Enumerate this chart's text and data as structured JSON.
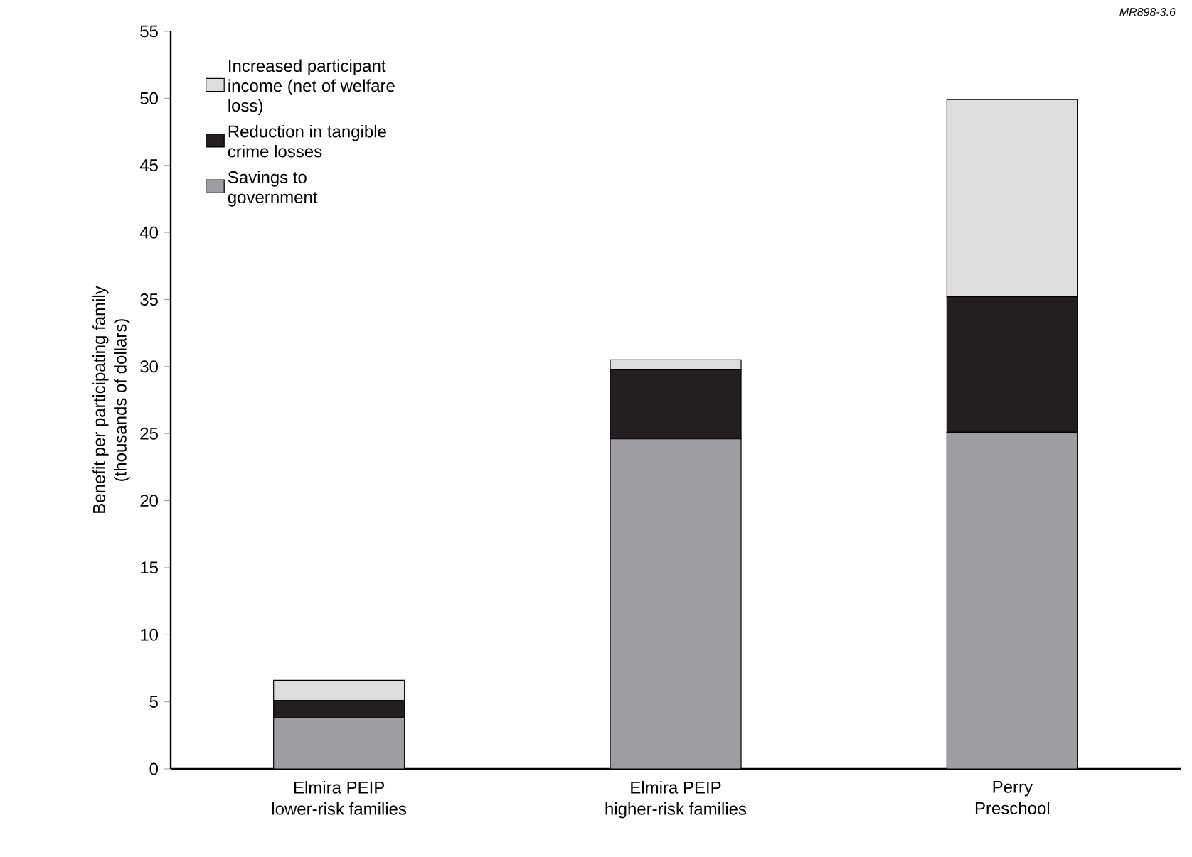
{
  "chart_data": {
    "type": "bar",
    "stacked": true,
    "ylabel": "Benefit per participating family\n(thousands of dollars)",
    "categories": [
      "Elmira PEIP\nlower-risk families",
      "Elmira PEIP\nhigher-risk families",
      "Perry\nPreschool"
    ],
    "series": [
      {
        "name": "Savings to\ngovernment",
        "color": "#9d9ea2",
        "values": [
          3.8,
          24.6,
          25.1
        ]
      },
      {
        "name": "Reduction in tangible\ncrime losses",
        "color": "#231f20",
        "values": [
          1.3,
          5.2,
          10.1
        ]
      },
      {
        "name": "Increased participant\nincome (net of welfare\nloss)",
        "color": "#dcdddf",
        "values": [
          1.5,
          0.7,
          14.7
        ]
      }
    ],
    "ylim": [
      0,
      55
    ],
    "yticks": [
      0,
      5,
      10,
      15,
      20,
      25,
      30,
      35,
      40,
      45,
      50,
      55
    ],
    "legend": "top left",
    "annotations": [
      "MR898-3.6"
    ]
  }
}
